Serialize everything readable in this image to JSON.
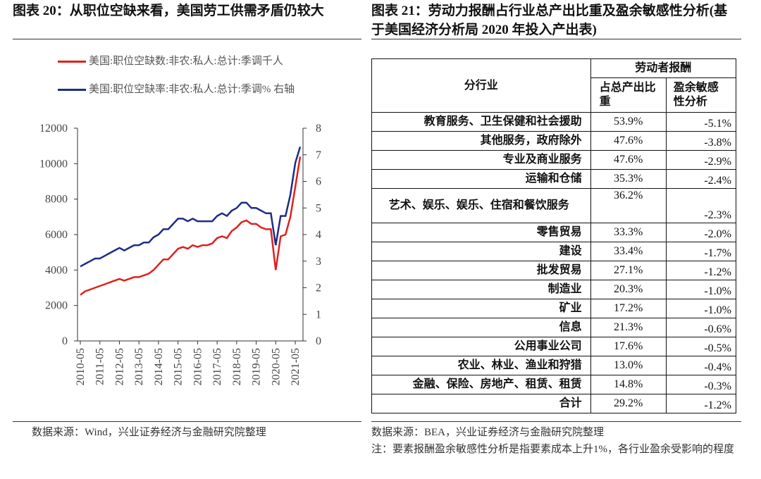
{
  "left_title": "图表 20：从职位空缺来看，美国劳工供需矛盾仍较大",
  "chart_data": {
    "type": "line",
    "x": [
      "2010-05",
      "2010-08",
      "2010-11",
      "2011-02",
      "2011-05",
      "2011-08",
      "2011-11",
      "2012-02",
      "2012-05",
      "2012-08",
      "2012-11",
      "2013-02",
      "2013-05",
      "2013-08",
      "2013-11",
      "2014-02",
      "2014-05",
      "2014-08",
      "2014-11",
      "2015-02",
      "2015-05",
      "2015-08",
      "2015-11",
      "2016-02",
      "2016-05",
      "2016-08",
      "2016-11",
      "2017-02",
      "2017-05",
      "2017-08",
      "2017-11",
      "2018-02",
      "2018-05",
      "2018-08",
      "2018-11",
      "2019-02",
      "2019-05",
      "2019-08",
      "2019-11",
      "2020-02",
      "2020-05",
      "2020-08",
      "2020-11",
      "2021-02",
      "2021-05",
      "2021-08"
    ],
    "xticks": [
      "2010-05",
      "2011-05",
      "2012-05",
      "2013-05",
      "2014-05",
      "2015-05",
      "2016-05",
      "2017-05",
      "2018-05",
      "2019-05",
      "2020-05",
      "2021-05"
    ],
    "ylim": [
      0,
      12000
    ],
    "yticks": [
      0,
      2000,
      4000,
      6000,
      8000,
      10000,
      12000
    ],
    "y2lim": [
      0,
      8
    ],
    "y2ticks": [
      0,
      1,
      2,
      3,
      4,
      5,
      6,
      7,
      8
    ],
    "series": [
      {
        "name": "美国:职位空缺数:非农:私人:总计:季调千人",
        "color": "#e0201b",
        "values": [
          2600,
          2800,
          2900,
          3000,
          3100,
          3200,
          3300,
          3400,
          3500,
          3400,
          3500,
          3600,
          3600,
          3700,
          3800,
          4000,
          4300,
          4600,
          4600,
          4900,
          5200,
          5300,
          5200,
          5400,
          5300,
          5400,
          5400,
          5500,
          5800,
          5900,
          5800,
          6200,
          6400,
          6700,
          6800,
          6600,
          6600,
          6400,
          6300,
          6300,
          4000,
          5900,
          6000,
          7000,
          8700,
          10400
        ]
      },
      {
        "name": "美国:职位空缺率:非农:私人:总计:季调%   右轴",
        "color": "#1c2c86",
        "axis": "y2",
        "values": [
          2.8,
          2.9,
          3.0,
          3.1,
          3.1,
          3.2,
          3.3,
          3.4,
          3.5,
          3.4,
          3.5,
          3.6,
          3.6,
          3.7,
          3.7,
          3.9,
          4.0,
          4.2,
          4.2,
          4.4,
          4.6,
          4.6,
          4.5,
          4.6,
          4.5,
          4.5,
          4.5,
          4.5,
          4.7,
          4.8,
          4.7,
          4.9,
          5.0,
          5.2,
          5.2,
          5.0,
          5.0,
          4.9,
          4.8,
          4.8,
          3.6,
          4.7,
          4.7,
          5.5,
          6.7,
          7.3
        ]
      }
    ]
  },
  "left_source": "数据来源：Wind，兴业证券经济与金融研究院整理",
  "right_title": "图表 21：劳动力报酬占行业总产出比重及盈余敏感性分析(基于美国经济分析局 2020 年投入产出表)",
  "table": {
    "header": {
      "industry": "分行业",
      "group": "劳动者报酬",
      "share": "占总产出比重",
      "sensitivity": "盈余敏感性分析"
    },
    "rows": [
      [
        "教育服务、卫生保健和社会援助",
        "53.9%",
        "-5.1%"
      ],
      [
        "其他服务，政府除外",
        "47.6%",
        "-3.8%"
      ],
      [
        "专业及商业服务",
        "47.6%",
        "-2.9%"
      ],
      [
        "运输和仓储",
        "35.3%",
        "-2.4%"
      ],
      [
        "艺术、娱乐、娱乐、住宿和餐饮服务",
        "36.2%",
        "-2.3%"
      ],
      [
        "零售贸易",
        "33.3%",
        "-2.0%"
      ],
      [
        "建设",
        "33.4%",
        "-1.7%"
      ],
      [
        "批发贸易",
        "27.1%",
        "-1.2%"
      ],
      [
        "制造业",
        "20.3%",
        "-1.0%"
      ],
      [
        "矿业",
        "17.2%",
        "-1.0%"
      ],
      [
        "信息",
        "21.3%",
        "-0.6%"
      ],
      [
        "公用事业公司",
        "17.6%",
        "-0.5%"
      ],
      [
        "农业、林业、渔业和狩猎",
        "13.0%",
        "-0.4%"
      ],
      [
        "金融、保险、房地产、租赁、租赁",
        "14.8%",
        "-0.3%"
      ],
      [
        "合计",
        "29.2%",
        "-1.2%"
      ]
    ]
  },
  "right_source": "数据来源：BEA，兴业证券经济与金融研究院整理",
  "right_note": "注：要素报酬盈余敏感性分析是指要素成本上升1%，各行业盈余受影响的程度"
}
